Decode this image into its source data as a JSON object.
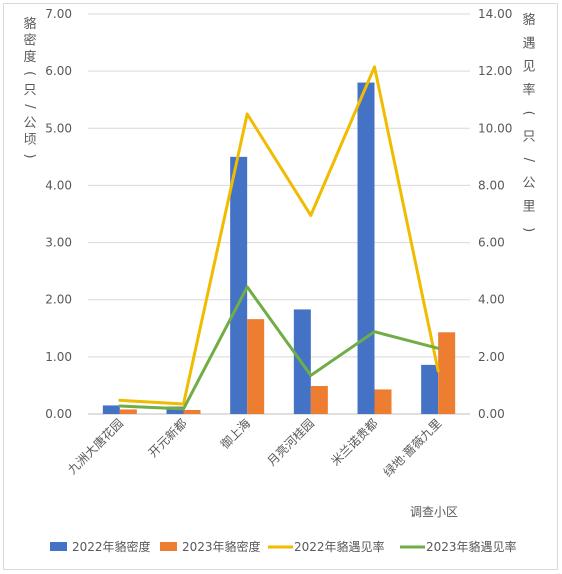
{
  "chart_data": {
    "type": "bar+line",
    "categories": [
      "九洲大唐花园",
      "开元新都",
      "御上海",
      "月亮河桂园",
      "米兰诺贵都",
      "绿地·蔷薇九里"
    ],
    "xlabel": "调查小区",
    "ylabel_left": "貉密度（只/公顷）",
    "ylabel_right": "貉遇见率（只/公里）",
    "ylim_left": [
      0,
      7
    ],
    "ylim_right": [
      0,
      14
    ],
    "left_ticks": [
      "0.00",
      "1.00",
      "2.00",
      "3.00",
      "4.00",
      "5.00",
      "6.00",
      "7.00"
    ],
    "right_ticks": [
      "0.00",
      "2.00",
      "4.00",
      "6.00",
      "8.00",
      "10.00",
      "12.00",
      "14.00"
    ],
    "grid": true,
    "legend_position": "bottom",
    "series": [
      {
        "name": "2022年貉密度",
        "type": "bar",
        "axis": "left",
        "color": "#4472c4",
        "values": [
          0.15,
          0.13,
          4.5,
          1.83,
          5.8,
          0.86
        ]
      },
      {
        "name": "2023年貉密度",
        "type": "bar",
        "axis": "left",
        "color": "#ed7d31",
        "values": [
          0.08,
          0.07,
          1.66,
          0.49,
          0.43,
          1.43
        ]
      },
      {
        "name": "2022年貉遇见率",
        "type": "line",
        "axis": "right",
        "color": "#f1bb00",
        "values": [
          0.48,
          0.35,
          10.5,
          6.95,
          12.15,
          1.5
        ]
      },
      {
        "name": "2023年貉遇见率",
        "type": "line",
        "axis": "right",
        "color": "#70ad47",
        "values": [
          0.28,
          0.18,
          4.45,
          1.35,
          2.88,
          2.3
        ]
      }
    ]
  }
}
